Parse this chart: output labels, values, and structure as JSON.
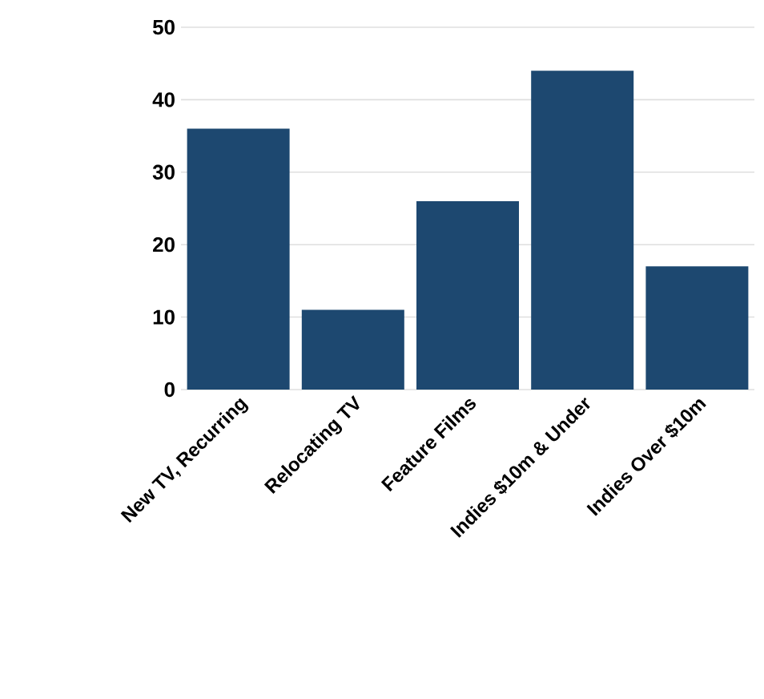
{
  "chart_data": {
    "type": "bar",
    "categories": [
      "New TV, Recurring",
      "Relocating TV",
      "Feature Films",
      "Indies $10m & Under",
      "Indies Over $10m"
    ],
    "values": [
      36,
      11,
      26,
      44,
      17
    ],
    "color": "#1d4870",
    "ylim": [
      0,
      50
    ],
    "yticks": [
      0,
      10,
      20,
      30,
      40,
      50
    ],
    "grid": "y"
  }
}
